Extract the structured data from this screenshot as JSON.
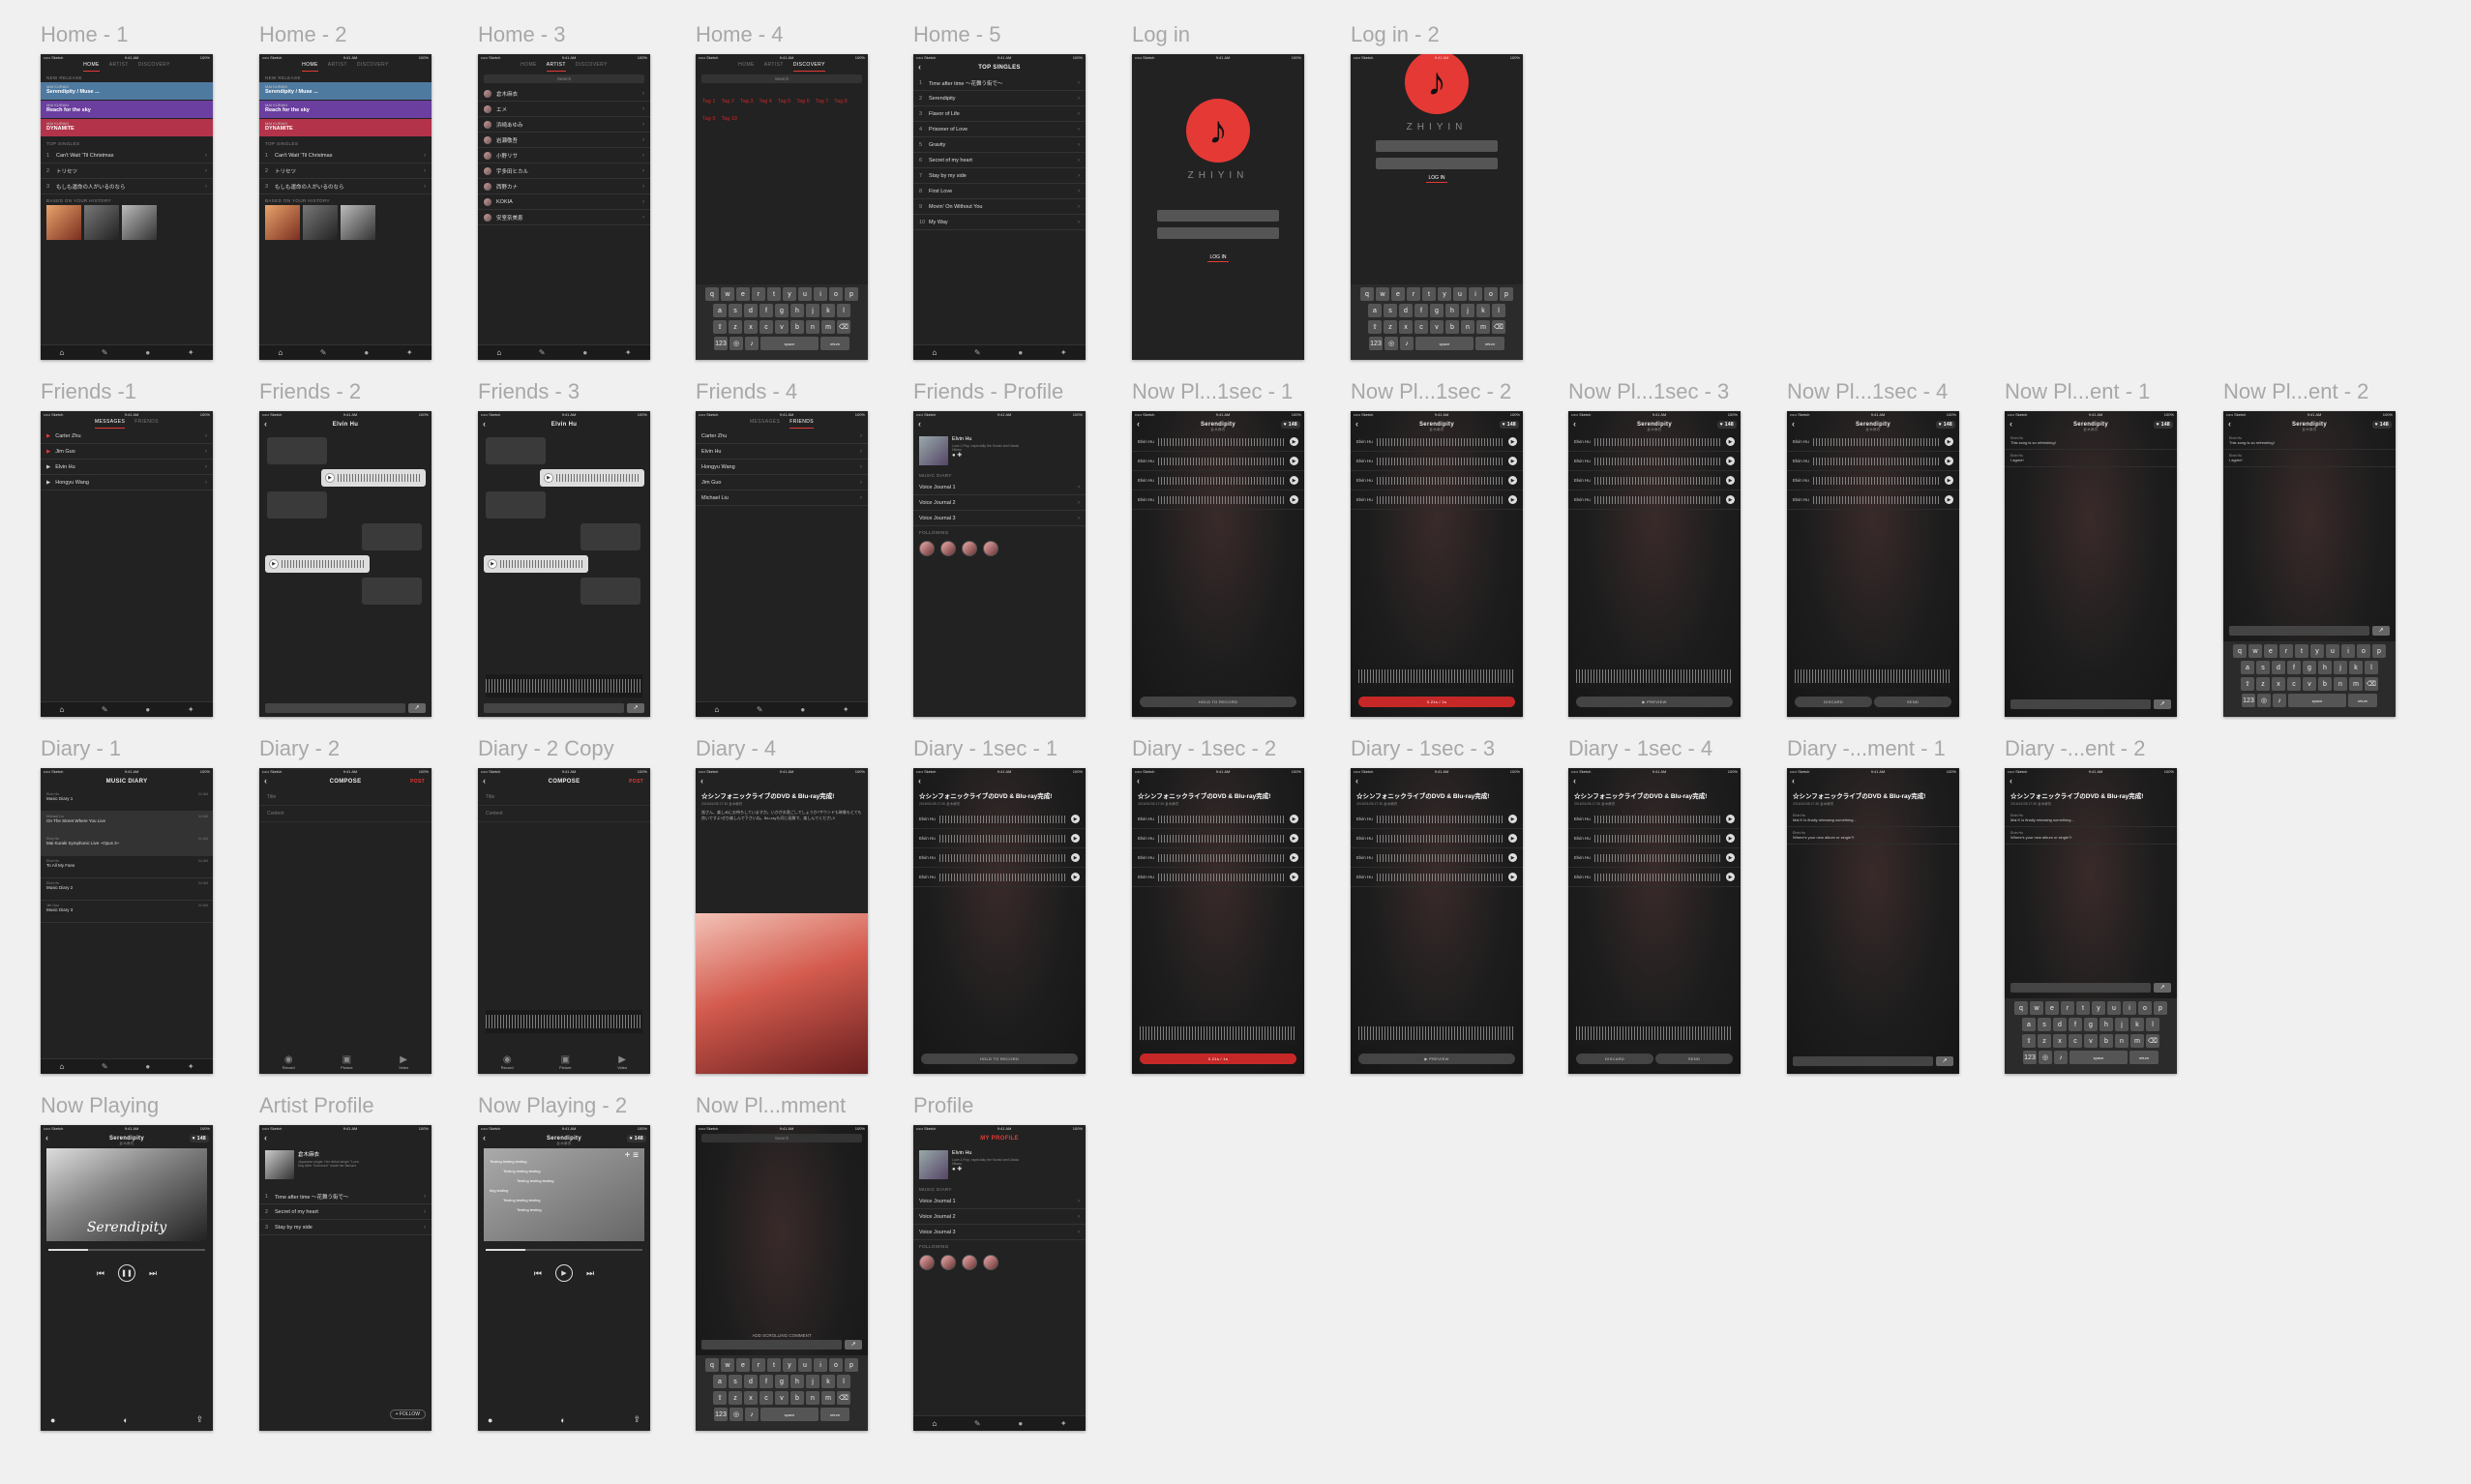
{
  "artboards": {
    "home_1": "Home - 1",
    "home_2": "Home - 2",
    "home_3": "Home - 3",
    "home_4": "Home - 4",
    "home_5": "Home - 5",
    "login": "Log in",
    "login_2": "Log in - 2",
    "friends_1": "Friends -1",
    "friends_2": "Friends - 2",
    "friends_3": "Friends - 3",
    "friends_4": "Friends - 4",
    "friends_profile": "Friends - Profile",
    "np_rec_1": "Now Pl...1sec - 1",
    "np_rec_2": "Now Pl...1sec - 2",
    "np_rec_3": "Now Pl...1sec - 3",
    "np_rec_4": "Now Pl...1sec - 4",
    "np_ent_1": "Now Pl...ent - 1",
    "np_ent_2": "Now Pl...ent - 2",
    "diary_1": "Diary - 1",
    "diary_2": "Diary - 2",
    "diary_2_copy": "Diary - 2 Copy",
    "diary_4": "Diary - 4",
    "diary_rec_1": "Diary - 1sec - 1",
    "diary_rec_2": "Diary - 1sec - 2",
    "diary_rec_3": "Diary - 1sec - 3",
    "diary_rec_4": "Diary - 1sec - 4",
    "diary_ment_1": "Diary -...ment - 1",
    "diary_ent_2": "Diary -...ent - 2",
    "now_playing": "Now Playing",
    "artist_profile": "Artist Profile",
    "now_playing_2": "Now Playing - 2",
    "np_mment": "Now Pl...mment",
    "profile": "Profile"
  },
  "status": {
    "carrier": "••••• Sketch",
    "time": "9:41 AM",
    "battery": "100%"
  },
  "home": {
    "tabs": [
      "HOME",
      "ARTIST",
      "DISCOVERY"
    ],
    "new_release": "NEW RELEASE",
    "releases": [
      {
        "artist": "MAI KURAKI",
        "title": "Serendipity / Muse ..."
      },
      {
        "artist": "MAI KURAKI",
        "title": "Reach for the sky"
      },
      {
        "artist": "MAI KURAKI",
        "title": "DYNAMITE"
      }
    ],
    "top_singles": "TOP SINGLES",
    "singles": [
      "Can't Wait 'Til Christmas",
      "トリセツ",
      "もしも運命の人がいるのなら"
    ],
    "history": "BASED ON YOUR HISTORY"
  },
  "artists": [
    "倉木麻衣",
    "エメ",
    "浜崎あゆみ",
    "岩瀬敬吾",
    "小野リサ",
    "宇多田ヒカル",
    "西野カナ",
    "KOKIA",
    "安室奈美恵"
  ],
  "search": "Search",
  "tags_grid": [
    "Tag 1",
    "Tag 2",
    "Tag 3",
    "Tag 4",
    "Tag 5",
    "Tag 6",
    "Tag 7",
    "Tag 8",
    "Tag 9",
    "Tag 10"
  ],
  "keyboard": {
    "r1": [
      "q",
      "w",
      "e",
      "r",
      "t",
      "y",
      "u",
      "i",
      "o",
      "p"
    ],
    "r2": [
      "a",
      "s",
      "d",
      "f",
      "g",
      "h",
      "j",
      "k",
      "l"
    ],
    "r3": [
      "z",
      "x",
      "c",
      "v",
      "b",
      "n",
      "m"
    ],
    "num": "123",
    "space": "space",
    "ret": "return"
  },
  "top_singles": {
    "title": "TOP SINGLES",
    "items": [
      "Time after time 〜花舞う街で〜",
      "Serendipity",
      "Flavor of Life",
      "Prisoner of Love",
      "Gravity",
      "Secret of my heart",
      "Stay by my side",
      "First Love",
      "Movin' On Without You",
      "My Way"
    ]
  },
  "login": {
    "brand": "ZHIYIN",
    "button": "LOG IN"
  },
  "friends": {
    "tabs": [
      "MESSAGES",
      "FRIENDS"
    ],
    "messages": [
      "Carter Zhu",
      "Jim Guo",
      "Elvin Hu",
      "Hongyu Wang"
    ],
    "list": [
      "Carter Zhu",
      "Elvin Hu",
      "Hongyu Wang",
      "Jim Guo",
      "Michael Liu"
    ],
    "chat_title": "Elvin Hu"
  },
  "profile": {
    "name": "Elvin Hu",
    "bio": "Love J-Pop, especially the Kuraki and Utada Hikaru",
    "music_diary": "MUSIC DIARY",
    "journals": [
      "Voice Journal 1",
      "Voice Journal 2",
      "Voice Journal 3"
    ],
    "following": "FOLLOWING",
    "my_profile": "MY PROFILE"
  },
  "now_playing": {
    "song": "Serendipity",
    "artist": "倉木麻衣",
    "likes": "♥ 148",
    "voice_user": "Elvin Hu",
    "hold": "HOLD TO RECORD",
    "preview": "▶ PREVIEW",
    "discard": "DISCARD",
    "send": "SEND",
    "timer": "0.21s / 1s",
    "c1": "This song is so refreshing!",
    "c2": "I agree!",
    "add_comment": "ADD SCROLLING COMMENT",
    "cover_text": "Serendipity",
    "lyrics": [
      "Testing testing testing",
      "Testing testing testing",
      "Testing testing testing",
      "ting testing",
      "Testing testing testing",
      "Testing testing"
    ]
  },
  "diary": {
    "title": "MUSIC DIARY",
    "entries": [
      {
        "user": "Elvin Hu",
        "title": "Music Diary 1"
      },
      {
        "user": "Michael Liu",
        "title": "On The Street Where You Live"
      },
      {
        "user": "Elvin Hu",
        "title": "Mai Kuraki Symphonic Live ~Opus 3~"
      },
      {
        "user": "Elvin Hu",
        "title": "To All My Fans"
      },
      {
        "user": "Elvin Hu",
        "title": "Music Diary 2"
      },
      {
        "user": "Jim Guo",
        "title": "Music Diary 3"
      }
    ],
    "compose": "COMPOSE",
    "post": "POST",
    "title_ph": "Title",
    "content_ph": "Content",
    "record": "Record",
    "picture": "Picture",
    "video": "Video",
    "post_title": "☆シンフォニックライブのDVD & Blu-ray完成!",
    "post_date": "2016/01/08 17:30 倉木麻衣",
    "post_body": "皆さん、楽しみにお待ちしていますか。いかがお過ごしでしょうか?サウンドも映像もとても良いですよ!ぜひ楽しんで下さいね。Blu-rayも同じ画質で、楽しんでください!",
    "dc1": "Mai K is finally releasing something...",
    "dc2": "Where's your new album or single?!"
  },
  "artist_profile": {
    "name": "倉木麻衣",
    "bio": "Japanese singer. Her debut single \"Love, Day After Tomorrow\" made her famous",
    "songs": [
      "Time after time 〜花舞う街で〜",
      "Secret of my heart",
      "Stay by my side"
    ],
    "follow": "+ FOLLOW"
  }
}
